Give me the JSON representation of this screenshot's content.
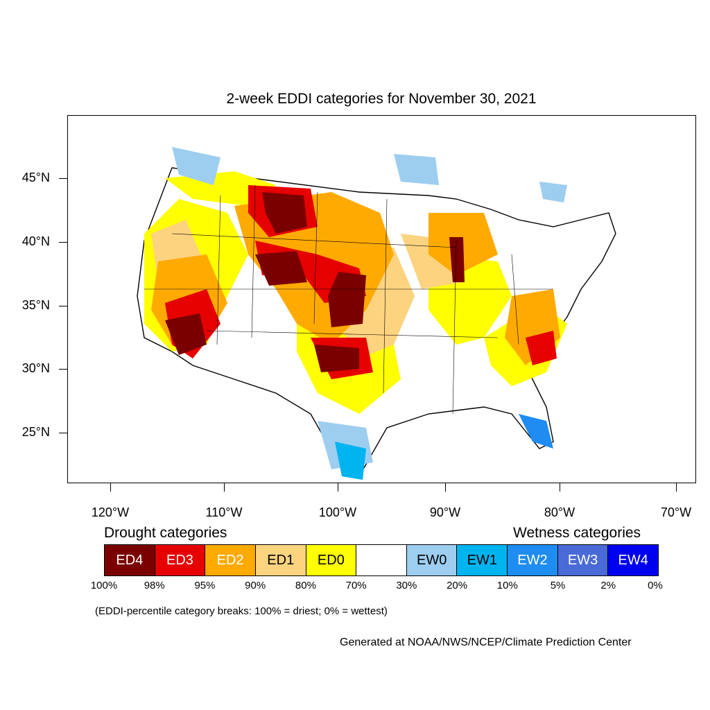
{
  "title": "2-week EDDI categories for November 30, 2021",
  "lat_labels": [
    "45°N",
    "40°N",
    "35°N",
    "30°N",
    "25°N"
  ],
  "lon_labels": [
    "120°W",
    "110°W",
    "100°W",
    "90°W",
    "80°W",
    "70°W"
  ],
  "legend": {
    "drought_heading": "Drought categories",
    "wetness_heading": "Wetness categories",
    "categories": [
      {
        "label": "ED4",
        "color": "#7a0000",
        "text_color": "#ffffff"
      },
      {
        "label": "ED3",
        "color": "#e60000",
        "text_color": "#ffffff"
      },
      {
        "label": "ED2",
        "color": "#ffaa00",
        "text_color": "#ffffff"
      },
      {
        "label": "ED1",
        "color": "#fcd37f",
        "text_color": "#000000"
      },
      {
        "label": "ED0",
        "color": "#ffff00",
        "text_color": "#000000"
      },
      {
        "label": "",
        "color": "#ffffff",
        "text_color": "#000000"
      },
      {
        "label": "EW0",
        "color": "#9dcef0",
        "text_color": "#000000"
      },
      {
        "label": "EW1",
        "color": "#00b4f0",
        "text_color": "#000000"
      },
      {
        "label": "EW2",
        "color": "#1e8cf0",
        "text_color": "#ffffff"
      },
      {
        "label": "EW3",
        "color": "#4a6ad8",
        "text_color": "#ffffff"
      },
      {
        "label": "EW4",
        "color": "#0000f0",
        "text_color": "#ffffff"
      }
    ],
    "breaks": [
      "100%",
      "98%",
      "95%",
      "90%",
      "80%",
      "70%",
      "30%",
      "20%",
      "10%",
      "5%",
      "2%",
      "0%"
    ]
  },
  "note": "(EDDI-percentile category breaks: 100% = driest; 0% = wettest)",
  "credit": "Generated at NOAA/NWS/NCEP/Climate Prediction Center"
}
